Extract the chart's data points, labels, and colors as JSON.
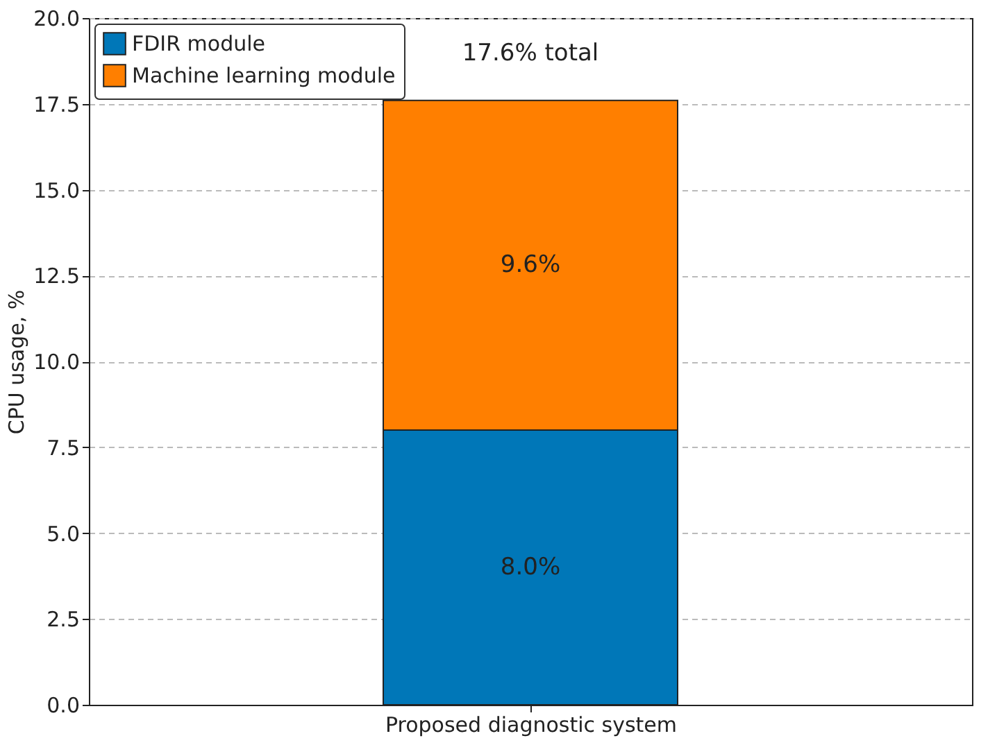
{
  "chart_data": {
    "type": "bar",
    "stacked": true,
    "categories": [
      "Proposed diagnostic system"
    ],
    "series": [
      {
        "name": "FDIR module",
        "color": "#0077b8",
        "values": [
          8.0
        ],
        "value_labels": [
          "8.0%"
        ]
      },
      {
        "name": "Machine learning module",
        "color": "#ff7f00",
        "values": [
          9.6
        ],
        "value_labels": [
          "9.6%"
        ]
      }
    ],
    "totals": [
      "17.6% total"
    ],
    "ylabel": "CPU usage, %",
    "ylim": [
      0,
      20
    ],
    "yticks": [
      {
        "value": 0,
        "label": "0.0"
      },
      2.5,
      {
        "value": 5,
        "label": "5.0"
      },
      7.5,
      {
        "value": 10,
        "label": "10.0"
      },
      12.5,
      {
        "value": 15,
        "label": "15.0"
      },
      17.5,
      {
        "value": 20,
        "label": "20.0"
      }
    ],
    "grid": "y",
    "legend": "top left"
  }
}
